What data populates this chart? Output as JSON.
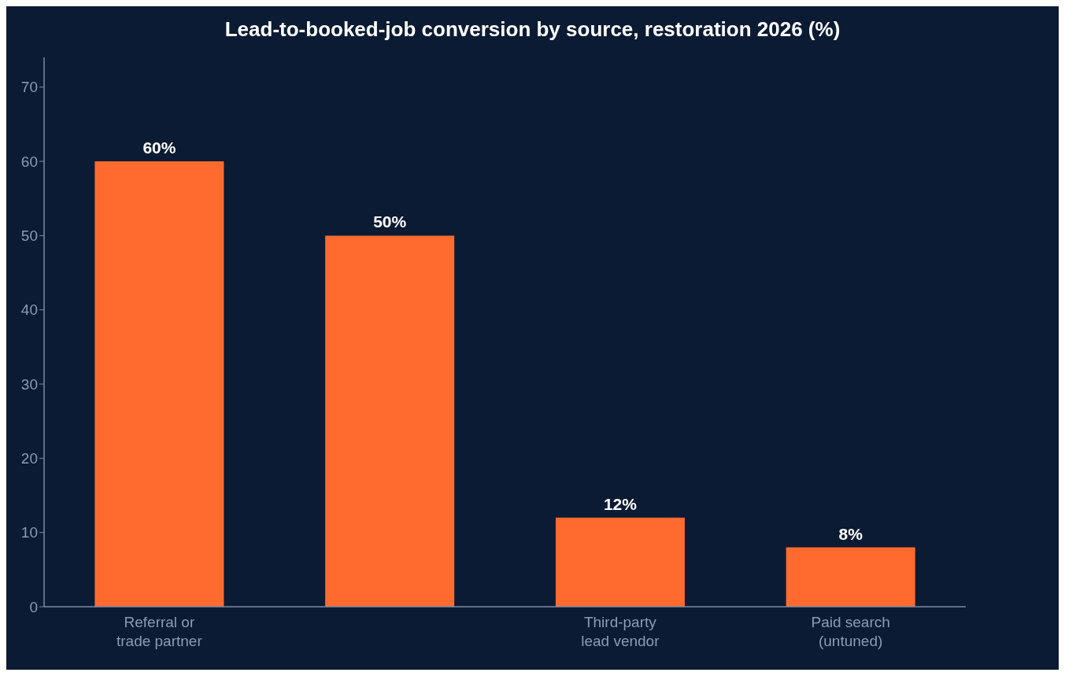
{
  "chart_data": {
    "type": "bar",
    "title": "Lead-to-booked-job conversion by source, restoration 2026 (%)",
    "categories": [
      "Referral or\ntrade partner",
      null,
      "Third-party\nlead vendor",
      "Paid search\n(untuned)"
    ],
    "values": [
      60,
      50,
      12,
      8
    ],
    "value_labels": [
      "60%",
      "50%",
      "12%",
      "8%"
    ],
    "color": "#ff6b2f",
    "ylim": [
      0,
      74
    ],
    "yticks": [
      0,
      10,
      20,
      30,
      40,
      50,
      60,
      70
    ],
    "grid": false,
    "legend": false
  }
}
